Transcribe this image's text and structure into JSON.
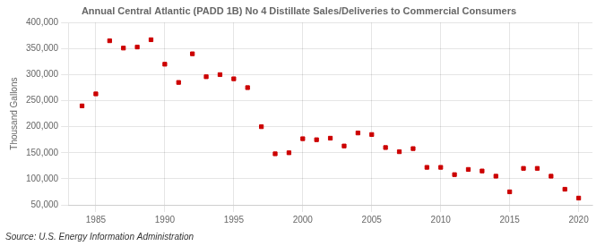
{
  "chart_data": {
    "type": "scatter",
    "title": "Annual Central Atlantic (PADD 1B) No 4 Distillate Sales/Deliveries to Commercial Consumers",
    "ylabel": "Thousand Gallons",
    "source": "Source: U.S. Energy Information Administration",
    "x": [
      1984,
      1985,
      1986,
      1987,
      1988,
      1989,
      1990,
      1991,
      1992,
      1993,
      1994,
      1995,
      1996,
      1997,
      1998,
      1999,
      2000,
      2001,
      2002,
      2003,
      2004,
      2005,
      2006,
      2007,
      2008,
      2009,
      2010,
      2011,
      2012,
      2013,
      2014,
      2015,
      2016,
      2017,
      2018,
      2019,
      2020
    ],
    "values": [
      240000,
      263000,
      365000,
      351000,
      353000,
      367000,
      320000,
      285000,
      340000,
      296000,
      300000,
      292000,
      275000,
      200000,
      148000,
      150000,
      177000,
      175000,
      178000,
      163000,
      188000,
      185000,
      160000,
      152000,
      158000,
      122000,
      122000,
      108000,
      118000,
      115000,
      105000,
      75000,
      120000,
      120000,
      105000,
      80000,
      63000
    ],
    "color": "#cc0000",
    "marker": "square",
    "xlim": [
      1983,
      2021
    ],
    "xticks": [
      1985,
      1990,
      1995,
      2000,
      2005,
      2010,
      2015,
      2020
    ],
    "ylim": [
      50000,
      400000
    ],
    "yticks": [
      {
        "value": 50000,
        "label": "50,000"
      },
      {
        "value": 100000,
        "label": "100,000"
      },
      {
        "value": 150000,
        "label": "150,000"
      },
      {
        "value": 200000,
        "label": "200,000"
      },
      {
        "value": 250000,
        "label": "250,000"
      },
      {
        "value": 300000,
        "label": "300,000"
      },
      {
        "value": 350000,
        "label": "350,000"
      },
      {
        "value": 400000,
        "label": "400,000"
      }
    ],
    "grid": true
  }
}
